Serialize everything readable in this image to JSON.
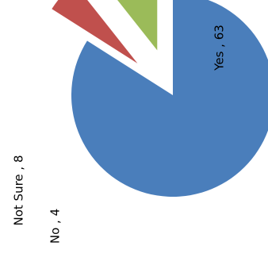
{
  "chart_data": {
    "type": "pie",
    "title": "",
    "categories": [
      "Yes",
      "No",
      "Not Sure"
    ],
    "values": [
      63,
      4,
      8
    ],
    "labels": [
      "Yes , 63",
      "No , 4",
      "Not Sure , 8"
    ],
    "colors": [
      "#4a7ebb",
      "#c0504d",
      "#9bbb59"
    ],
    "exploded": [
      false,
      true,
      true
    ],
    "legend": "none",
    "label_rotation": "-90"
  }
}
